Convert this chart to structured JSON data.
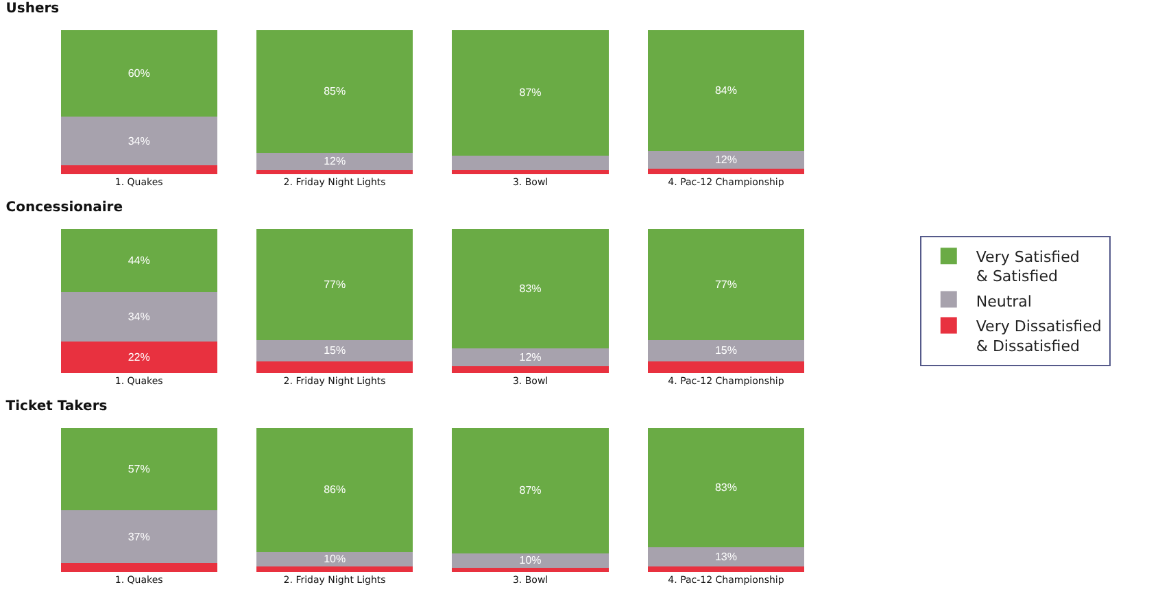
{
  "chart_data": [
    {
      "type": "bar",
      "title": "Ushers",
      "categories": [
        "1. Quakes",
        "2. Friday Night Lights",
        "3. Bowl",
        "4. Pac-12 Championship"
      ],
      "stacked": true,
      "ylim": [
        0,
        100
      ],
      "legend": false,
      "grid": false,
      "series": [
        {
          "color": "#e8313f",
          "values": [
            6,
            3,
            3,
            4
          ],
          "value_labels": [
            null,
            null,
            null,
            null
          ]
        },
        {
          "color": "#a7a2ad",
          "values": [
            34,
            12,
            10,
            12
          ],
          "value_labels": [
            "34%",
            "12%",
            null,
            "12%"
          ]
        },
        {
          "color": "#6aab45",
          "values": [
            60,
            85,
            87,
            84
          ],
          "value_labels": [
            "60%",
            "85%",
            "87%",
            "84%"
          ]
        }
      ]
    },
    {
      "type": "bar",
      "title": "Concessionaire",
      "categories": [
        "1. Quakes",
        "2. Friday Night Lights",
        "3. Bowl",
        "4. Pac-12 Championship"
      ],
      "stacked": true,
      "ylim": [
        0,
        100
      ],
      "legend": "right",
      "grid": false,
      "series": [
        {
          "name": "Very Dissatisfied & Dissatisfied",
          "color": "#e8313f",
          "values": [
            22,
            8,
            5,
            8
          ],
          "value_labels": [
            "22%",
            null,
            null,
            null
          ]
        },
        {
          "name": "Neutral",
          "color": "#a7a2ad",
          "values": [
            34,
            15,
            12,
            15
          ],
          "value_labels": [
            "34%",
            "15%",
            "12%",
            "15%"
          ]
        },
        {
          "name": "Very Satisfied & Satisfied",
          "color": "#6aab45",
          "values": [
            44,
            77,
            83,
            77
          ],
          "value_labels": [
            "44%",
            "77%",
            "83%",
            "77%"
          ]
        }
      ]
    },
    {
      "type": "bar",
      "title": "Ticket Takers",
      "categories": [
        "1. Quakes",
        "2. Friday Night Lights",
        "3. Bowl",
        "4. Pac-12 Championship"
      ],
      "stacked": true,
      "ylim": [
        0,
        100
      ],
      "legend": false,
      "grid": false,
      "series": [
        {
          "color": "#e8313f",
          "values": [
            6,
            4,
            3,
            4
          ],
          "value_labels": [
            null,
            null,
            null,
            null
          ]
        },
        {
          "color": "#a7a2ad",
          "values": [
            37,
            10,
            10,
            13
          ],
          "value_labels": [
            "37%",
            "10%",
            "10%",
            "13%"
          ]
        },
        {
          "color": "#6aab45",
          "values": [
            57,
            86,
            87,
            83
          ],
          "value_labels": [
            "57%",
            "86%",
            "87%",
            "83%"
          ]
        }
      ]
    }
  ]
}
